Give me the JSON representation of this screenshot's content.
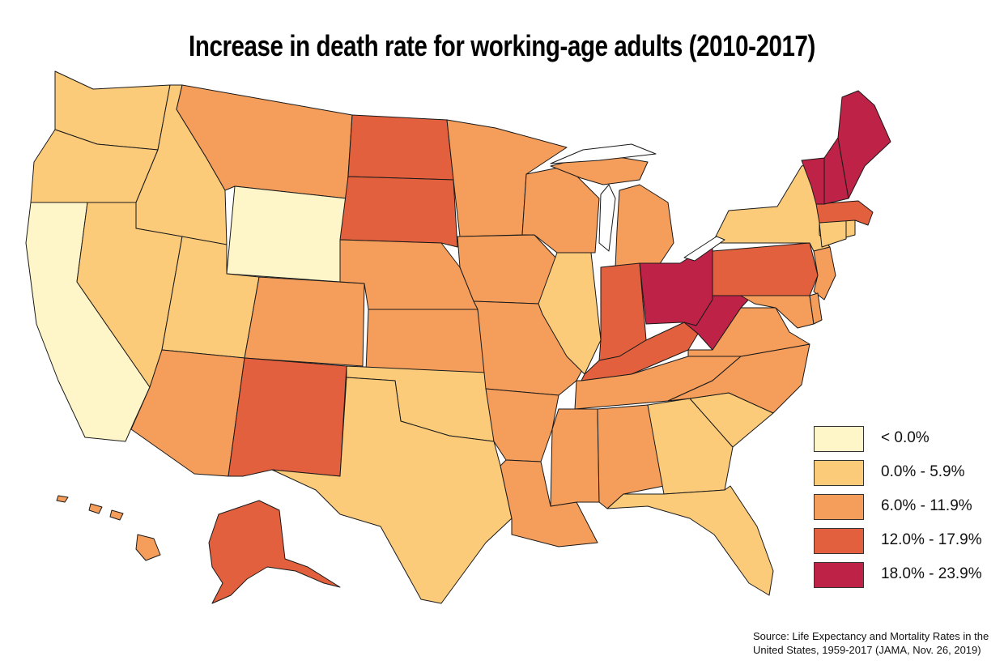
{
  "title": "Increase in death rate for working-age adults (2010-2017)",
  "colors": {
    "bin_below_0": "#FEF6C8",
    "bin_0_6": "#FCCB7A",
    "bin_6_12": "#F59D5A",
    "bin_12_18": "#E2603D",
    "bin_18_24": "#BE2247"
  },
  "legend": [
    {
      "label": "< 0.0%",
      "color_key": "bin_below_0"
    },
    {
      "label": "0.0% - 5.9%",
      "color_key": "bin_0_6"
    },
    {
      "label": "6.0% - 11.9%",
      "color_key": "bin_6_12"
    },
    {
      "label": "12.0% - 17.9%",
      "color_key": "bin_12_18"
    },
    {
      "label": "18.0% - 23.9%",
      "color_key": "bin_18_24"
    }
  ],
  "states": {
    "CA": "bin_below_0",
    "WY": "bin_below_0",
    "WA": "bin_0_6",
    "OR": "bin_0_6",
    "ID": "bin_0_6",
    "NV": "bin_0_6",
    "UT": "bin_0_6",
    "TX": "bin_0_6",
    "OK": "bin_0_6",
    "IL": "bin_0_6",
    "GA": "bin_0_6",
    "SC": "bin_0_6",
    "FL": "bin_0_6",
    "NY": "bin_0_6",
    "CT": "bin_0_6",
    "RI": "bin_0_6",
    "MT": "bin_6_12",
    "CO": "bin_6_12",
    "AZ": "bin_6_12",
    "NE": "bin_6_12",
    "KS": "bin_6_12",
    "MN": "bin_6_12",
    "IA": "bin_6_12",
    "MO": "bin_6_12",
    "AR": "bin_6_12",
    "LA": "bin_6_12",
    "WI": "bin_6_12",
    "MI": "bin_6_12",
    "MS": "bin_6_12",
    "AL": "bin_6_12",
    "TN": "bin_6_12",
    "NC": "bin_6_12",
    "VA": "bin_6_12",
    "NJ": "bin_6_12",
    "DE": "bin_6_12",
    "MD": "bin_6_12",
    "HI": "bin_6_12",
    "ND": "bin_12_18",
    "SD": "bin_12_18",
    "NM": "bin_12_18",
    "IN": "bin_12_18",
    "KY": "bin_12_18",
    "PA": "bin_12_18",
    "MA": "bin_12_18",
    "AK": "bin_12_18",
    "OH": "bin_18_24",
    "WV": "bin_18_24",
    "ME": "bin_18_24",
    "NH": "bin_18_24",
    "VT": "bin_18_24"
  },
  "source": "Source: Life Expectancy and Mortality Rates in the United States, 1959-2017 (JAMA, Nov. 26, 2019)"
}
